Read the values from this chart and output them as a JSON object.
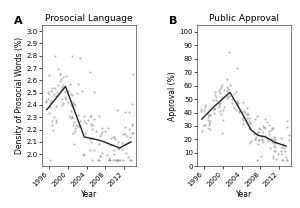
{
  "panel_A": {
    "title": "Prosocial Language",
    "label": "A",
    "ylabel": "Density of Prosocial Words (%)",
    "xlabel": "Year",
    "ylim": [
      1.9,
      3.05
    ],
    "yticks": [
      2.0,
      2.1,
      2.2,
      2.3,
      2.4,
      2.5,
      2.6,
      2.7,
      2.8,
      2.9,
      3.0
    ],
    "xticks": [
      1996,
      2000,
      2004,
      2008,
      2012
    ],
    "xlim": [
      1994.5,
      2014.5
    ],
    "scatter_seed": 42,
    "line_x": [
      1995.5,
      1999.5,
      2003.5,
      2007,
      2011,
      2013.5
    ],
    "line_y": [
      2.36,
      2.55,
      2.14,
      2.11,
      2.05,
      2.1
    ]
  },
  "panel_B": {
    "title": "Public Approval",
    "label": "B",
    "ylabel": "Approval (%)",
    "xlabel": "Year",
    "ylim": [
      0,
      105
    ],
    "yticks": [
      0,
      10,
      20,
      30,
      40,
      50,
      60,
      70,
      80,
      90,
      100
    ],
    "xticks": [
      1996,
      2000,
      2004,
      2008,
      2012
    ],
    "xlim": [
      1994.5,
      2014.5
    ],
    "scatter_seed": 99,
    "line_x": [
      1995.5,
      1998,
      2001.5,
      2004,
      2006,
      2007.5,
      2009,
      2011,
      2013.5
    ],
    "line_y": [
      35,
      44,
      55,
      40,
      27,
      23,
      22,
      18,
      15
    ]
  },
  "scatter_color": "#999999",
  "line_color": "#222222",
  "background_color": "#ffffff",
  "title_fontsize": 6.5,
  "label_fontsize": 8,
  "tick_fontsize": 5,
  "axis_label_fontsize": 5.5
}
